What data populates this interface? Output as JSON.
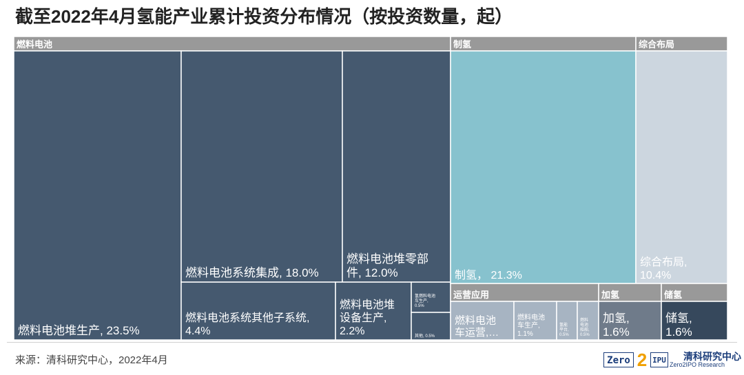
{
  "title": "截至2022年4月氢能产业累计投资分布情况（按投资数量，起）",
  "source": "来源：清科研究中心，2022年4月",
  "logo": {
    "box1": "Zero",
    "two": "2",
    "box2": "IPU",
    "cn": "清科研究中心",
    "en": "Zero2IPO Research"
  },
  "colors": {
    "fuel_cell": "#45596f",
    "hydrogen_production": "#87c2ce",
    "integrated": "#ccd6df",
    "operation": "#a7b4c2",
    "refueling": "#6f7b8a",
    "storage": "#36485c",
    "header": "#999999"
  },
  "chart_data": {
    "type": "treemap",
    "title": "截至2022年4月氢能产业累计投资分布情况（按投资数量，起）",
    "groups": [
      {
        "name": "燃料电池",
        "color": "#45596f",
        "items": [
          {
            "label": "燃料电池堆生产, 23.5%",
            "name": "燃料电池堆生产",
            "value": 23.5
          },
          {
            "label": "燃料电池系统集成, 18.0%",
            "name": "燃料电池系统集成",
            "value": 18.0
          },
          {
            "label": "燃料电池堆零部件, 12.0%",
            "name": "燃料电池堆零部件",
            "value": 12.0
          },
          {
            "label": "燃料电池系统其他子系统, 4.4%",
            "name": "燃料电池系统其他子系统",
            "value": 4.4
          },
          {
            "label": "燃料电池堆设备生产, 2.2%",
            "name": "燃料电池堆设备生产",
            "value": 2.2
          },
          {
            "label": "氢燃料电池车生产, 0.5%",
            "name": "氢燃料电池车生产",
            "value": 0.5
          },
          {
            "label": "其他, 0.5%",
            "name": "其他",
            "value": 0.5
          }
        ]
      },
      {
        "name": "制氢",
        "color": "#87c2ce",
        "items": [
          {
            "label": "制氢， 21.3%",
            "name": "制氢",
            "value": 21.3
          }
        ]
      },
      {
        "name": "综合布局",
        "color": "#ccd6df",
        "items": [
          {
            "label": "综合布局, 10.4%",
            "name": "综合布局",
            "value": 10.4
          }
        ]
      },
      {
        "name": "运营应用",
        "color": "#a7b4c2",
        "items": [
          {
            "label": "燃料电池车运营,…",
            "name": "燃料电池车运营"
          },
          {
            "label": "燃料电池车生产, 1.1%",
            "name": "燃料电池车生产",
            "value": 1.1
          },
          {
            "label": "氢能平台, 0.5%",
            "name": "氢能平台",
            "value": 0.5
          },
          {
            "label": "燃料电池船舶, 0.5%",
            "name": "燃料电池船舶",
            "value": 0.5
          }
        ]
      },
      {
        "name": "加氢",
        "color": "#6f7b8a",
        "items": [
          {
            "label": "加氢, 1.6%",
            "name": "加氢",
            "value": 1.6
          }
        ]
      },
      {
        "name": "储氢",
        "color": "#36485c",
        "items": [
          {
            "label": "储氢, 1.6%",
            "name": "储氢",
            "value": 1.6
          }
        ]
      }
    ]
  }
}
